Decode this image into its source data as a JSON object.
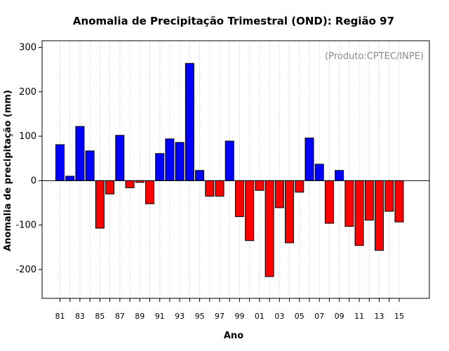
{
  "chart_data": {
    "type": "bar",
    "title": "Anomalia de Precipitação Trimestral (OND): Região 97",
    "credit": "(Produto:CPTEC/INPE)",
    "xlabel": "Ano",
    "ylabel": "Anomalia de precipitação (mm)",
    "ylim": [
      -265,
      315
    ],
    "yticks": [
      -200,
      -100,
      0,
      100,
      200,
      300
    ],
    "grid": "vertical-dotted",
    "categories": [
      "81",
      "82",
      "83",
      "84",
      "85",
      "86",
      "87",
      "88",
      "89",
      "90",
      "91",
      "92",
      "93",
      "94",
      "95",
      "96",
      "97",
      "98",
      "99",
      "00",
      "01",
      "02",
      "03",
      "04",
      "05",
      "06",
      "07",
      "08",
      "09",
      "10",
      "11",
      "12",
      "13",
      "14",
      "15"
    ],
    "xtick_labels": [
      "81",
      "",
      "83",
      "",
      "85",
      "",
      "87",
      "",
      "89",
      "",
      "91",
      "",
      "93",
      "",
      "95",
      "",
      "97",
      "",
      "99",
      "",
      "01",
      "",
      "03",
      "",
      "05",
      "",
      "07",
      "",
      "09",
      "",
      "11",
      "",
      "13",
      "",
      "15"
    ],
    "values": [
      81,
      10,
      122,
      67,
      -107,
      -30,
      102,
      -16,
      -4,
      -52,
      61,
      94,
      86,
      264,
      23,
      -35,
      -35,
      89,
      -81,
      -135,
      -22,
      -216,
      -61,
      -140,
      -26,
      96,
      37,
      -96,
      23,
      -103,
      -146,
      -89,
      -157,
      -69,
      -93
    ],
    "colors": {
      "positive": "#0000ff",
      "negative": "#ff0000",
      "grid": "#c8c8c8",
      "credit": "#8a8a8a"
    }
  }
}
